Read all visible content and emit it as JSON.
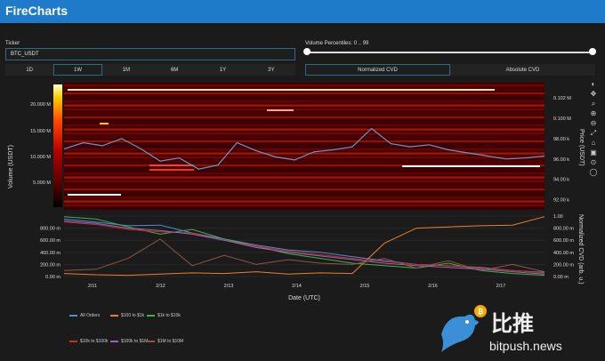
{
  "app": {
    "title": "FireCharts"
  },
  "ticker": {
    "label": "Ticker",
    "value": "BTC_USDT"
  },
  "percentiles": {
    "label": "Volume Percentiles: 0 .. 99",
    "low": 0,
    "high": 99
  },
  "timeframes": [
    {
      "label": "1D",
      "active": false
    },
    {
      "label": "1W",
      "active": true
    },
    {
      "label": "1M",
      "active": false
    },
    {
      "label": "6M",
      "active": false
    },
    {
      "label": "1Y",
      "active": false
    },
    {
      "label": "3Y",
      "active": false
    }
  ],
  "cvd_modes": [
    {
      "label": "Normalized CVD",
      "active": true
    },
    {
      "label": "Absolute CVD",
      "active": false
    }
  ],
  "toolbar_icons": [
    "plotly-logo-icon",
    "pan-icon",
    "zoom-icon",
    "zoom-in-icon",
    "zoom-out-icon",
    "autoscale-icon",
    "reset-icon",
    "camera-icon",
    "spike-icon",
    "hover-icon"
  ],
  "chart_data": [
    {
      "type": "heatmap",
      "title": "",
      "ylabel_left": "Volume (USDT)",
      "ylabel_right": "Price (USDT)",
      "colorbar_ticks": [
        "20.000 M",
        "15.000 M",
        "10.000 M",
        "5.000 M"
      ],
      "price_ticks": [
        "0.102 M",
        "0.100 M",
        "98.00 k",
        "96.00 k",
        "94.00 k",
        "92.00 k"
      ],
      "ylim_price": [
        91000,
        103500
      ],
      "price_series": {
        "name": "Price",
        "x": [
          0,
          0.3,
          0.6,
          0.9,
          1.2,
          1.5,
          1.8,
          2.1,
          2.4,
          2.7,
          3.0,
          3.3,
          3.6,
          3.9,
          4.2,
          4.5,
          4.8,
          5.1,
          5.4,
          5.7,
          6.0,
          6.3,
          6.6,
          6.9,
          7.2,
          7.5
        ],
        "y": [
          97000,
          97600,
          97300,
          98000,
          97000,
          95800,
          96100,
          95000,
          95400,
          97600,
          96800,
          96200,
          95900,
          96700,
          96900,
          97200,
          99000,
          97500,
          97200,
          97400,
          96900,
          96600,
          96300,
          96000,
          96100,
          96300
        ]
      }
    },
    {
      "type": "line",
      "xlabel": "Date (UTC)",
      "ylabel": "Normalized CVD (arb. u.)",
      "x_ticks": [
        "2/11",
        "2/12",
        "2/13",
        "2/14",
        "2/15",
        "2/16",
        "2/17"
      ],
      "y_ticks_left": [
        "800.00 m",
        "600.00 m",
        "400.00 m",
        "200.00 m",
        "0.00 m"
      ],
      "y_ticks_right": [
        "1.00",
        "800.00 m",
        "600.00 m",
        "400.00 m",
        "200.00 m",
        "0.00 m"
      ],
      "ylim": [
        0,
        1
      ],
      "series": [
        {
          "name": "All Orders",
          "color": "#4a90d9",
          "values": [
            0.95,
            0.9,
            0.84,
            0.85,
            0.72,
            0.62,
            0.52,
            0.44,
            0.4,
            0.33,
            0.26,
            0.2,
            0.18,
            0.15,
            0.1,
            0.07
          ]
        },
        {
          "name": "$100 to $1k",
          "color": "#f07e26",
          "values": [
            0.05,
            0.03,
            0.02,
            0.04,
            0.06,
            0.05,
            0.08,
            0.04,
            0.06,
            0.05,
            0.55,
            0.8,
            0.82,
            0.84,
            0.85,
            0.99
          ]
        },
        {
          "name": "$1k to $10k",
          "color": "#3fb53f",
          "values": [
            0.99,
            0.95,
            0.82,
            0.7,
            0.78,
            0.62,
            0.5,
            0.38,
            0.3,
            0.22,
            0.18,
            0.14,
            0.22,
            0.1,
            0.05,
            0.02
          ]
        },
        {
          "name": "$10k to $100k",
          "color": "#d62728",
          "values": [
            0.9,
            0.86,
            0.78,
            0.74,
            0.72,
            0.6,
            0.5,
            0.42,
            0.36,
            0.3,
            0.25,
            0.2,
            0.18,
            0.14,
            0.1,
            0.06
          ]
        },
        {
          "name": "$100k to $1M",
          "color": "#9467bd",
          "values": [
            0.92,
            0.88,
            0.8,
            0.76,
            0.7,
            0.6,
            0.48,
            0.4,
            0.34,
            0.28,
            0.22,
            0.18,
            0.15,
            0.12,
            0.08,
            0.04
          ]
        },
        {
          "name": "$1M to $10M",
          "color": "#8c564b",
          "values": [
            0.1,
            0.12,
            0.3,
            0.62,
            0.18,
            0.35,
            0.2,
            0.28,
            0.22,
            0.2,
            0.3,
            0.14,
            0.26,
            0.1,
            0.2,
            0.08
          ]
        }
      ]
    }
  ],
  "watermark": {
    "cn": "比推",
    "en": "bitpush.news"
  }
}
